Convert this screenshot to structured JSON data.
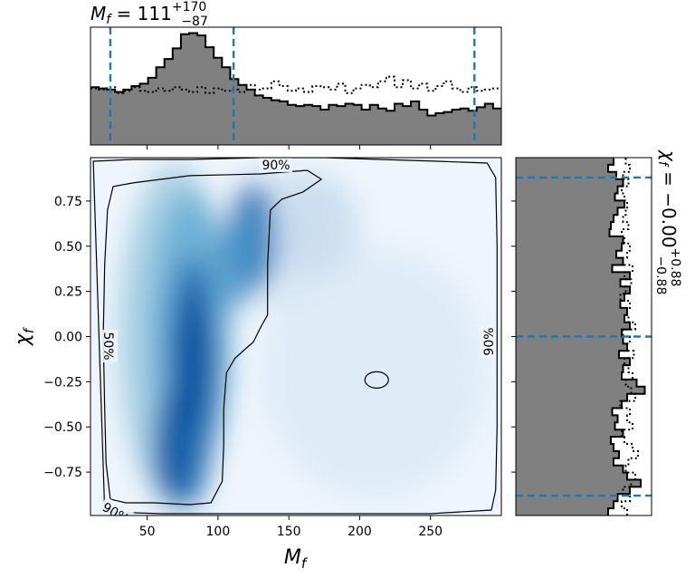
{
  "chart_data": [
    {
      "type": "heatmap",
      "xlabel": "M_f",
      "ylabel": "χ_f",
      "xlim": [
        10,
        300
      ],
      "ylim": [
        -0.99,
        0.99
      ],
      "xticks": [
        50,
        100,
        150,
        200,
        250
      ],
      "yticks": [
        0.75,
        0.5,
        0.25,
        0.0,
        -0.25,
        -0.5,
        -0.75
      ],
      "colormap": "Blues",
      "density_peak": [
        80,
        -0.15
      ],
      "contour_labels": [
        "90%",
        "50%",
        "90%",
        "90%"
      ],
      "contour_50_island": [
        212,
        -0.24
      ]
    },
    {
      "type": "area",
      "title": "M_f = 111^{+170}_{-87}",
      "median": 111,
      "upper_err": 170,
      "lower_err": 87,
      "quantile_lines": [
        24,
        111,
        281
      ],
      "xlim": [
        10,
        300
      ],
      "bins_x": [
        10,
        15.8,
        21.6,
        27.4,
        33.2,
        39,
        44.8,
        50.6,
        56.4,
        62.2,
        68,
        73.8,
        79.6,
        85.4,
        91.2,
        97,
        102.8,
        108.6,
        114.4,
        120.2,
        126,
        131.8,
        137.6,
        143.4,
        149.2,
        155,
        160.8,
        166.6,
        172.4,
        178.2,
        184,
        189.8,
        195.6,
        201.4,
        207.2,
        213,
        218.8,
        224.6,
        230.4,
        236.2,
        242,
        247.8,
        253.6,
        259.4,
        265.2,
        271,
        276.8,
        282.6,
        288.4,
        294.2,
        300
      ],
      "posterior": [
        0.49,
        0.48,
        0.47,
        0.45,
        0.47,
        0.5,
        0.52,
        0.57,
        0.66,
        0.73,
        0.82,
        0.94,
        0.95,
        0.93,
        0.83,
        0.74,
        0.66,
        0.56,
        0.51,
        0.47,
        0.42,
        0.4,
        0.38,
        0.37,
        0.34,
        0.33,
        0.34,
        0.33,
        0.3,
        0.34,
        0.33,
        0.35,
        0.34,
        0.3,
        0.34,
        0.31,
        0.29,
        0.35,
        0.33,
        0.37,
        0.3,
        0.25,
        0.27,
        0.28,
        0.3,
        0.31,
        0.29,
        0.32,
        0.35,
        0.31
      ],
      "prior": [
        0.48,
        0.47,
        0.49,
        0.44,
        0.46,
        0.49,
        0.46,
        0.45,
        0.48,
        0.46,
        0.49,
        0.47,
        0.45,
        0.49,
        0.44,
        0.48,
        0.46,
        0.47,
        0.45,
        0.51,
        0.47,
        0.48,
        0.54,
        0.5,
        0.46,
        0.48,
        0.45,
        0.5,
        0.49,
        0.47,
        0.52,
        0.44,
        0.48,
        0.51,
        0.49,
        0.54,
        0.58,
        0.49,
        0.55,
        0.48,
        0.52,
        0.46,
        0.5,
        0.54,
        0.48,
        0.45,
        0.49,
        0.46,
        0.47,
        0.48
      ]
    },
    {
      "type": "area",
      "orientation": "horizontal",
      "title": "χ_f = -0.00^{+0.88}_{-0.88}",
      "median": 0.0,
      "upper_err": 0.88,
      "lower_err": 0.88,
      "quantile_lines": [
        0.88,
        0.0,
        -0.88
      ],
      "ylim": [
        -0.99,
        0.99
      ],
      "bins_y": [
        -0.99,
        -0.9504,
        -0.9108,
        -0.8712,
        -0.8316,
        -0.792,
        -0.7524,
        -0.7128,
        -0.6732,
        -0.6336,
        -0.594,
        -0.5544,
        -0.5148,
        -0.4752,
        -0.4356,
        -0.396,
        -0.3564,
        -0.3168,
        -0.2772,
        -0.2376,
        -0.198,
        -0.1584,
        -0.1188,
        -0.0792,
        -0.0396,
        0.0,
        0.0396,
        0.0792,
        0.1188,
        0.1584,
        0.198,
        0.2376,
        0.2772,
        0.3168,
        0.3564,
        0.396,
        0.4356,
        0.4752,
        0.5148,
        0.5544,
        0.594,
        0.6336,
        0.6732,
        0.7128,
        0.7524,
        0.792,
        0.8316,
        0.8712,
        0.9108,
        0.9504,
        0.99
      ],
      "posterior": [
        0.68,
        0.72,
        0.75,
        0.84,
        0.92,
        0.82,
        0.79,
        0.72,
        0.76,
        0.72,
        0.7,
        0.79,
        0.73,
        0.75,
        0.71,
        0.78,
        0.82,
        0.95,
        0.89,
        0.78,
        0.79,
        0.84,
        0.76,
        0.82,
        0.79,
        0.78,
        0.84,
        0.8,
        0.82,
        0.77,
        0.8,
        0.84,
        0.77,
        0.84,
        0.71,
        0.79,
        0.74,
        0.78,
        0.79,
        0.69,
        0.7,
        0.72,
        0.75,
        0.8,
        0.73,
        0.75,
        0.79,
        0.74,
        0.68,
        0.72
      ],
      "prior": [
        0.82,
        0.78,
        0.84,
        0.79,
        0.85,
        0.88,
        0.81,
        0.83,
        0.9,
        0.86,
        0.8,
        0.78,
        0.86,
        0.82,
        0.84,
        0.77,
        0.88,
        0.85,
        0.81,
        0.86,
        0.83,
        0.8,
        0.87,
        0.82,
        0.84,
        0.79,
        0.88,
        0.83,
        0.82,
        0.84,
        0.77,
        0.81,
        0.85,
        0.8,
        0.86,
        0.79,
        0.82,
        0.84,
        0.8,
        0.78,
        0.83,
        0.79,
        0.81,
        0.82,
        0.8,
        0.78,
        0.83,
        0.79,
        0.84,
        0.81
      ]
    }
  ]
}
